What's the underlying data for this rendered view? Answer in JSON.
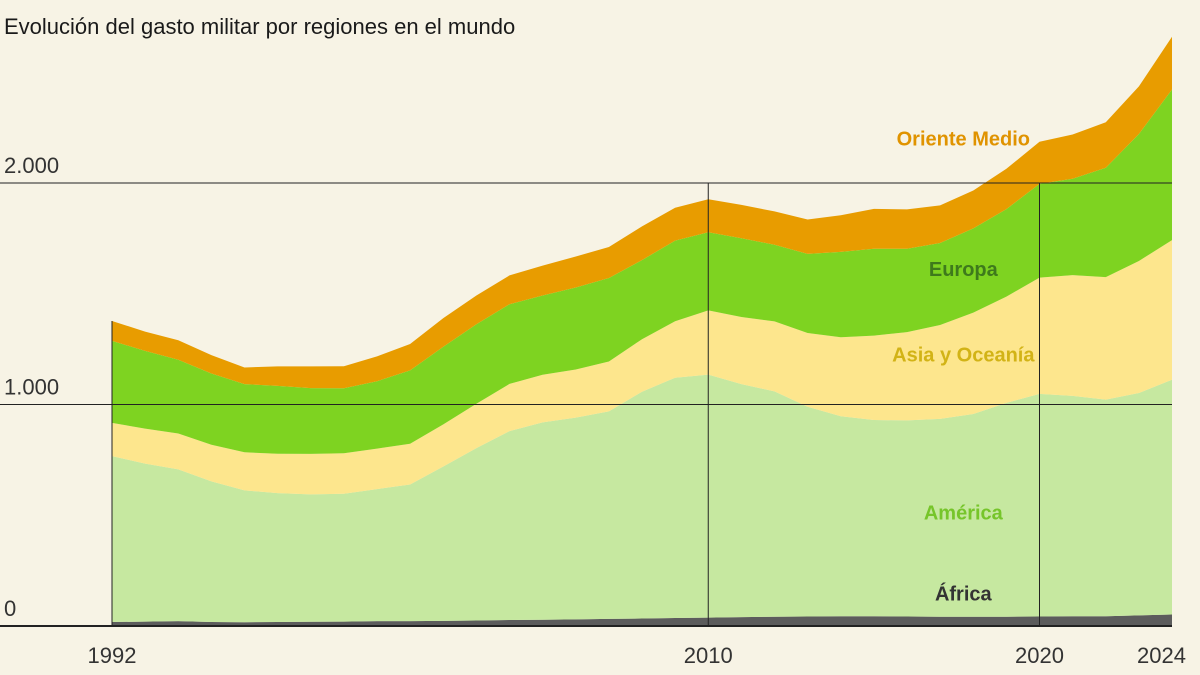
{
  "chart_data": {
    "type": "area",
    "stacked": true,
    "title": "Evolución del gasto militar por regiones en el mundo",
    "xlabel": "",
    "ylabel": "",
    "xlim": [
      1992,
      2024
    ],
    "ylim": [
      0,
      2700
    ],
    "y_ticks": [
      {
        "value": 0,
        "label": "0"
      },
      {
        "value": 1000,
        "label": "1.000"
      },
      {
        "value": 2000,
        "label": "2.000"
      }
    ],
    "x_ticks": [
      {
        "value": 1992,
        "label": "1992"
      },
      {
        "value": 2010,
        "label": "2010"
      },
      {
        "value": 2020,
        "label": "2020"
      },
      {
        "value": 2024,
        "label": "2024"
      }
    ],
    "x": [
      1992,
      1993,
      1994,
      1995,
      1996,
      1997,
      1998,
      1999,
      2000,
      2001,
      2002,
      2003,
      2004,
      2005,
      2006,
      2007,
      2008,
      2009,
      2010,
      2011,
      2012,
      2013,
      2014,
      2015,
      2016,
      2017,
      2018,
      2019,
      2020,
      2021,
      2022,
      2023,
      2024
    ],
    "series": [
      {
        "name": "África",
        "color": "#5c5c5c",
        "values": [
          18,
          20,
          22,
          18,
          17,
          18,
          19,
          20,
          22,
          22,
          23,
          25,
          27,
          28,
          30,
          32,
          34,
          36,
          38,
          40,
          42,
          43,
          44,
          44,
          43,
          42,
          42,
          42,
          43,
          44,
          44,
          48,
          52
        ]
      },
      {
        "name": "América",
        "color": "#c6e8a0",
        "values": [
          749,
          713,
          685,
          635,
          595,
          582,
          575,
          577,
          596,
          617,
          697,
          778,
          853,
          891,
          911,
          937,
          1024,
          1085,
          1097,
          1052,
          1017,
          947,
          903,
          886,
          885,
          893,
          915,
          965,
          1005,
          995,
          978,
          1004,
          1060
        ]
      },
      {
        "name": "Asia y Oceanía",
        "color": "#fde68d",
        "values": [
          150,
          158,
          162,
          165,
          172,
          178,
          183,
          183,
          183,
          184,
          190,
          200,
          213,
          215,
          217,
          225,
          237,
          255,
          290,
          303,
          316,
          333,
          357,
          381,
          399,
          424,
          458,
          480,
          525,
          545,
          553,
          596,
          630
        ]
      },
      {
        "name": "Europa",
        "color": "#7ed321",
        "values": [
          370,
          351,
          333,
          322,
          308,
          306,
          297,
          293,
          304,
          331,
          351,
          359,
          360,
          358,
          370,
          377,
          357,
          364,
          353,
          356,
          346,
          357,
          385,
          392,
          376,
          370,
          380,
          395,
          423,
          435,
          494,
          573,
          680
        ]
      },
      {
        "name": "Oriente Medio",
        "color": "#e89c00",
        "values": [
          90,
          87,
          88,
          83,
          75,
          88,
          98,
          100,
          112,
          119,
          129,
          130,
          130,
          135,
          140,
          140,
          152,
          148,
          149,
          150,
          151,
          155,
          165,
          180,
          178,
          170,
          171,
          182,
          190,
          200,
          205,
          215,
          238
        ]
      }
    ],
    "series_labels": [
      {
        "series": "Oriente Medio",
        "text": "Oriente Medio",
        "color": "#e09300",
        "x": 2017.7,
        "y": 2170
      },
      {
        "series": "Europa",
        "text": "Europa",
        "color": "#3e7a1c",
        "x": 2017.7,
        "y": 1580
      },
      {
        "series": "Asia y Oceanía",
        "text": "Asia y Oceanía",
        "color": "#d2b316",
        "x": 2017.7,
        "y": 1195
      },
      {
        "series": "América",
        "text": "América",
        "color": "#76c52a",
        "x": 2017.7,
        "y": 480
      },
      {
        "series": "África",
        "text": "África",
        "color": "#333333",
        "x": 2017.7,
        "y": 115
      }
    ]
  }
}
